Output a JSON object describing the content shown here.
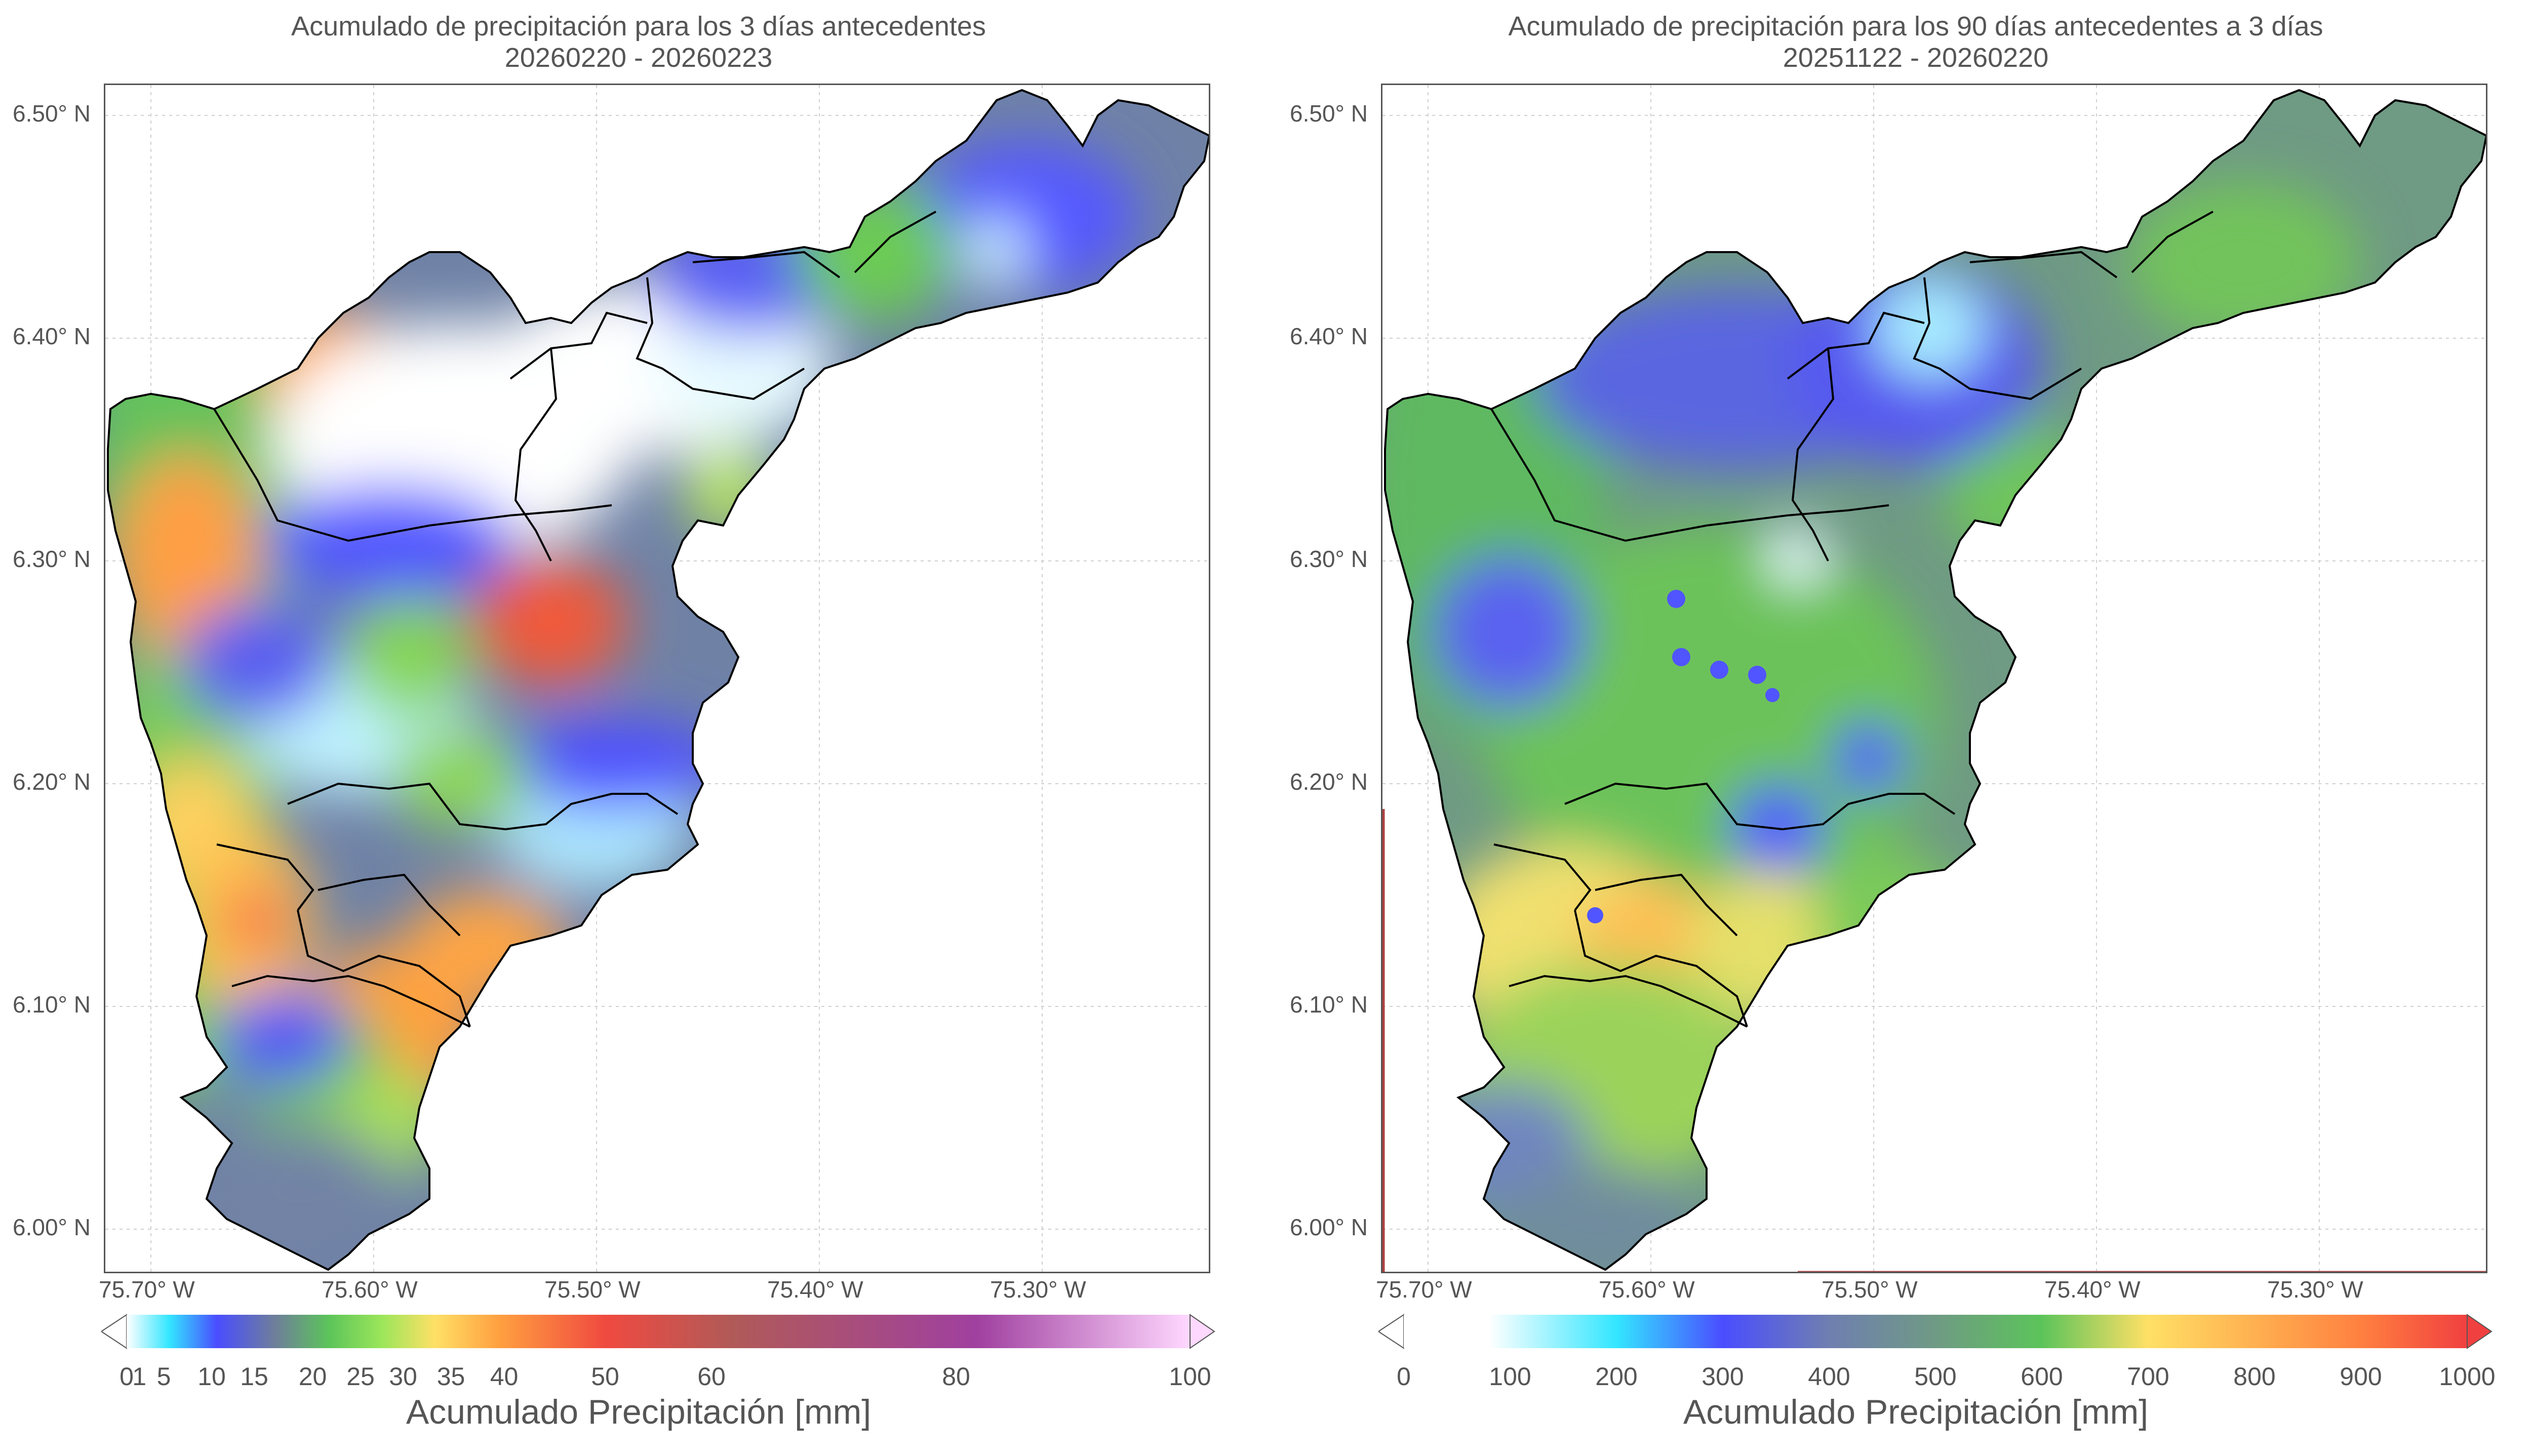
{
  "left": {
    "title_line1": "Acumulado de precipitación para los 3 días antecedentes",
    "title_line2": "20260220 - 20260223",
    "lat_labels": [
      "6.50° N",
      "6.40° N",
      "6.30° N",
      "6.20° N",
      "6.10° N",
      "6.00° N"
    ],
    "lon_labels": [
      "75.70° W",
      "75.60° W",
      "75.50° W",
      "75.40° W",
      "75.30° W"
    ],
    "colorbar_ticks": [
      "0",
      "1",
      "5",
      "10",
      "15",
      "20",
      "25",
      "30",
      "35",
      "40",
      "50",
      "60",
      "80",
      "100"
    ],
    "colorbar_label": "Acumulado Precipitación [mm]"
  },
  "right": {
    "title_line1": "Acumulado de precipitación para los 90 días antecedentes a 3 días",
    "title_line2": "20251122 - 20260220",
    "lat_labels": [
      "6.50° N",
      "6.40° N",
      "6.30° N",
      "6.20° N",
      "6.10° N",
      "6.00° N"
    ],
    "lon_labels": [
      "75.70° W",
      "75.60° W",
      "75.50° W",
      "75.40° W",
      "75.30° W"
    ],
    "colorbar_ticks": [
      "0",
      "100",
      "200",
      "300",
      "400",
      "500",
      "600",
      "700",
      "800",
      "900",
      "1000"
    ],
    "colorbar_label": "Acumulado Precipitación [mm]"
  },
  "colors": {
    "white": "#ffffff",
    "cyan": "#33e6ff",
    "blue": "#4a4dff",
    "slate": "#6e7f9a",
    "green": "#5cc45a",
    "lightgreen": "#9be65a",
    "yellow": "#ffe066",
    "orange": "#ffa040",
    "red": "#f04040",
    "purple": "#a040a0",
    "pink": "#ffd8ff",
    "outline": "#000000"
  }
}
